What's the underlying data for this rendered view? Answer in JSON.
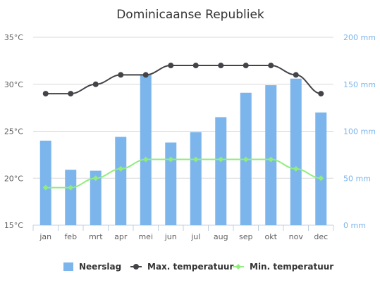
{
  "chart_data": {
    "type": "bar",
    "title": "Dominicaanse Republiek",
    "categories": [
      "jan",
      "feb",
      "mrt",
      "apr",
      "mei",
      "jun",
      "jul",
      "aug",
      "sep",
      "okt",
      "nov",
      "dec"
    ],
    "left_axis": {
      "ylim": [
        15,
        35
      ],
      "ticks": [
        15,
        20,
        25,
        30,
        35
      ],
      "tick_labels": [
        "15°C",
        "20°C",
        "25°C",
        "30°C",
        "35°C"
      ]
    },
    "right_axis": {
      "ylim": [
        0,
        200
      ],
      "ticks": [
        0,
        50,
        100,
        150,
        200
      ],
      "tick_labels": [
        "0 mm",
        "50 mm",
        "100 mm",
        "150 mm",
        "200 mm"
      ]
    },
    "grid": true,
    "legend_position": "bottom",
    "series": [
      {
        "name": "Neerslag",
        "type": "bar",
        "axis": "right",
        "color": "#7cb5ec",
        "values": [
          90,
          59,
          58,
          94,
          160,
          88,
          99,
          115,
          141,
          149,
          156,
          120
        ]
      },
      {
        "name": "Max. temperatuur",
        "type": "line",
        "axis": "left",
        "color": "#434348",
        "values": [
          29,
          29,
          30,
          31,
          31,
          32,
          32,
          32,
          32,
          32,
          31,
          29
        ]
      },
      {
        "name": "Min. temperatuur",
        "type": "line",
        "axis": "left",
        "color": "#90ed7d",
        "values": [
          19,
          19,
          20,
          21,
          22,
          22,
          22,
          22,
          22,
          22,
          21,
          20
        ]
      }
    ]
  }
}
